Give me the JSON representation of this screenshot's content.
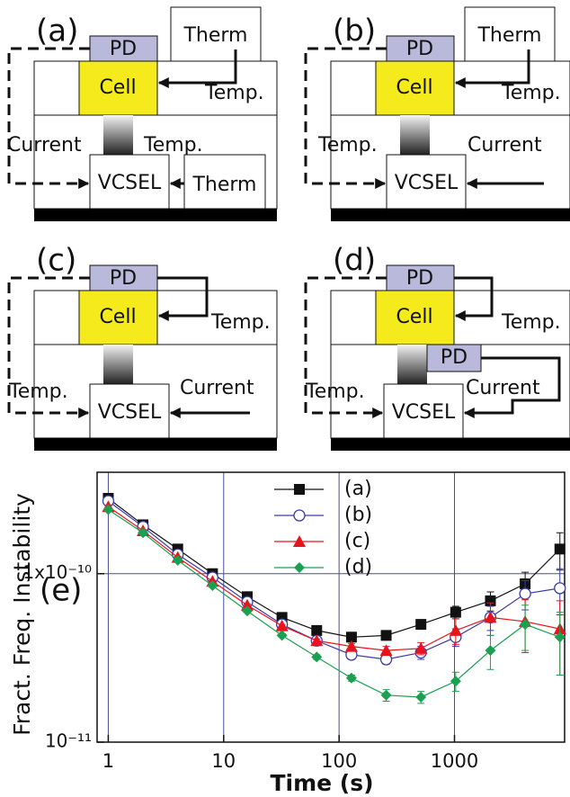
{
  "diagrams": [
    {
      "label": "(a)",
      "pd": "PD",
      "therm_top": "Therm",
      "cell": "Cell",
      "upper_right": "Temp.",
      "lower_left": "Current",
      "lower_right": "Temp.",
      "vcsel": "VCSEL",
      "therm_bottom": "Therm"
    },
    {
      "label": "(b)",
      "pd": "PD",
      "therm_top": "Therm",
      "cell": "Cell",
      "upper_right": "Temp.",
      "lower_left": "Temp.",
      "lower_right": "Current",
      "vcsel": "VCSEL"
    },
    {
      "label": "(c)",
      "pd": "PD",
      "cell": "Cell",
      "upper_right": "Temp.",
      "lower_left": "Temp.",
      "lower_right": "Current",
      "vcsel": "VCSEL"
    },
    {
      "label": "(d)",
      "pd": "PD",
      "cell": "Cell",
      "upper_right": "Temp.",
      "pd_lower": "PD",
      "lower_left": "Temp.",
      "lower_right": "Current",
      "vcsel": "VCSEL"
    }
  ],
  "chart_data": {
    "type": "line",
    "annotation": "(e)",
    "x_label": "Time (s)",
    "y_label": "Fract. Freq. Instability",
    "x_scale": "log",
    "y_scale": "log",
    "legend": "upper center",
    "x": [
      1,
      2,
      4,
      8,
      16,
      32,
      64,
      128,
      256,
      512,
      1024,
      2048,
      4096,
      8192
    ],
    "xlim": [
      0.8,
      9000
    ],
    "xticks": [
      1,
      10,
      100,
      1000
    ],
    "ylim": [
      1e-11,
      4e-10
    ],
    "yticks": [
      {
        "value": 1e-11,
        "label": "10⁻¹¹"
      },
      {
        "value": 1e-10,
        "label": "1x10⁻¹⁰"
      }
    ],
    "series": [
      {
        "name": "(a)",
        "color": "#111111",
        "marker": "square",
        "values": [
          2.8e-10,
          1.95e-10,
          1.4e-10,
          1e-10,
          7.3e-11,
          5.5e-11,
          4.6e-11,
          4.2e-11,
          4.3e-11,
          5e-11,
          5.9e-11,
          6.9e-11,
          8.7e-11,
          1.4e-10
        ],
        "errors": [
          3e-12,
          2e-12,
          1.5e-12,
          1e-12,
          1e-12,
          1e-12,
          1e-12,
          1.5e-12,
          2e-12,
          3e-12,
          5e-12,
          9e-12,
          1.5e-11,
          3.5e-11
        ]
      },
      {
        "name": "(b)",
        "color": "#3a3aa8",
        "marker": "circle-open",
        "values": [
          2.7e-10,
          1.9e-10,
          1.3e-10,
          9.5e-11,
          6.8e-11,
          5e-11,
          4e-11,
          3.3e-11,
          3.1e-11,
          3.4e-11,
          4.2e-11,
          5.5e-11,
          7.6e-11,
          8.2e-11
        ],
        "errors": [
          3e-12,
          2e-12,
          1.5e-12,
          1e-12,
          1e-12,
          1e-12,
          1e-12,
          1.5e-12,
          2e-12,
          3e-12,
          5e-12,
          9e-12,
          1.5e-11,
          2.5e-11
        ]
      },
      {
        "name": "(c)",
        "color": "#e8141c",
        "marker": "triangle",
        "values": [
          2.5e-10,
          1.8e-10,
          1.25e-10,
          9e-11,
          6.5e-11,
          4.9e-11,
          4e-11,
          3.7e-11,
          3.5e-11,
          3.6e-11,
          4.6e-11,
          5.5e-11,
          5.2e-11,
          4.7e-11
        ],
        "errors": [
          3e-12,
          2e-12,
          1.5e-12,
          1e-12,
          1e-12,
          1e-12,
          1e-12,
          1.5e-12,
          2e-12,
          3e-12,
          8e-12,
          1.2e-11,
          1.8e-11,
          2.2e-11
        ]
      },
      {
        "name": "(d)",
        "color": "#1aa050",
        "marker": "diamond",
        "values": [
          2.4e-10,
          1.75e-10,
          1.2e-10,
          8.5e-11,
          6e-11,
          4.3e-11,
          3.2e-11,
          2.4e-11,
          1.9e-11,
          1.85e-11,
          2.3e-11,
          3.5e-11,
          5e-11,
          4.2e-11
        ],
        "errors": [
          3e-12,
          2e-12,
          1.5e-12,
          1e-12,
          1e-12,
          1e-12,
          1e-12,
          1e-12,
          1.5e-12,
          1.5e-12,
          3e-12,
          8e-12,
          1.5e-11,
          1.7e-11
        ]
      }
    ]
  }
}
